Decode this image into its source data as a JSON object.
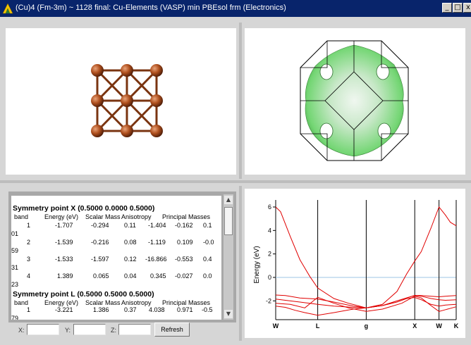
{
  "window": {
    "title": "(Cu)4  (Fm-3m) ~ 1128 final: Cu-Elements (VASP) min PBEsol frm (Electronics)",
    "buttons": {
      "minimize": "_",
      "maximize": "□",
      "close": "x"
    }
  },
  "symmetry_points": [
    {
      "title": "Symmetry point X (0.5000 0.0000 0.5000)",
      "rows": [
        {
          "band": "1",
          "energy": "-1.707",
          "scalar_mass": "-0.294",
          "anisotropy": "0.11",
          "pm1": "-1.404",
          "pm2": "-0.162",
          "pm3": "0.1",
          "spill": "01"
        },
        {
          "band": "2",
          "energy": "-1.539",
          "scalar_mass": "-0.216",
          "anisotropy": "0.08",
          "pm1": "-1.119",
          "pm2": "0.109",
          "pm3": "-0.0",
          "spill": "59"
        },
        {
          "band": "3",
          "energy": "-1.533",
          "scalar_mass": "-1.597",
          "anisotropy": "0.12",
          "pm1": "-16.866",
          "pm2": "-0.553",
          "pm3": "0.4",
          "spill": "31"
        },
        {
          "band": "4",
          "energy": "1.389",
          "scalar_mass": "0.065",
          "anisotropy": "0.04",
          "pm1": "0.345",
          "pm2": "-0.027",
          "pm3": "0.0",
          "spill": "23"
        }
      ]
    },
    {
      "title": "Symmetry point L (0.5000 0.5000 0.5000)",
      "rows": [
        {
          "band": "1",
          "energy": "-3.221",
          "scalar_mass": "1.386",
          "anisotropy": "0.37",
          "pm1": "4.038",
          "pm2": "0.971",
          "pm3": "-0.5",
          "spill": "79"
        }
      ]
    }
  ],
  "columns": {
    "band": "band",
    "energy": "Energy (eV)",
    "scalar_mass": "Scalar Mass",
    "anisotropy": "Anisotropy",
    "principal": "Principal Masses"
  },
  "controls": {
    "x_label": "X:",
    "x_value": "",
    "y_label": "Y:",
    "y_value": "",
    "z_label": "Z:",
    "z_value": "",
    "refresh_label": "Refresh"
  },
  "icons": {
    "app": "app-logo-icon",
    "scroll_up": "scroll-up-icon",
    "scroll_down": "scroll-down-icon"
  },
  "colors": {
    "title_bar": "#08246b",
    "copper_atom": "#b0501e",
    "fermi_surface": "#74d674",
    "band_line": "#e00000",
    "fermi_level_line": "#9ec6e6"
  },
  "chart_data": {
    "type": "line",
    "title": "",
    "ylabel": "Energy (eV)",
    "xlabel": "",
    "x_ticks": [
      "W",
      "L",
      "g",
      "X",
      "W",
      "K"
    ],
    "x_tick_positions": [
      0,
      0.866,
      1.866,
      2.866,
      3.366,
      3.72
    ],
    "ylim": [
      -3.6,
      6.6
    ],
    "y_ticks": [
      -2,
      0,
      2,
      4,
      6
    ],
    "fermi_level": 0,
    "grid": false,
    "series": [
      {
        "x": [
          0,
          0.2,
          0.4,
          0.6,
          0.866,
          1.2,
          1.6,
          1.866,
          2.2,
          2.5,
          2.7,
          2.866,
          3.0,
          3.2,
          3.366,
          3.5,
          3.72
        ],
        "y": [
          -2.45,
          -2.55,
          -2.8,
          -3.0,
          -3.22,
          -3.0,
          -2.7,
          -2.6,
          -2.4,
          -2.1,
          -1.8,
          -1.71,
          -1.9,
          -2.3,
          -2.45,
          -2.35,
          -2.3
        ]
      },
      {
        "x": [
          0,
          0.2,
          0.5,
          0.866,
          1.2,
          1.6,
          1.866,
          2.2,
          2.5,
          2.866,
          3.0,
          3.2,
          3.366,
          3.5,
          3.72
        ],
        "y": [
          -1.85,
          -1.95,
          -2.1,
          -2.3,
          -2.45,
          -2.55,
          -2.6,
          -2.4,
          -2.0,
          -1.54,
          -1.6,
          -1.8,
          -1.9,
          -1.95,
          -1.9
        ]
      },
      {
        "x": [
          0,
          0.2,
          0.5,
          0.866,
          1.2,
          1.6,
          1.866,
          2.2,
          2.5,
          2.866,
          3.0,
          3.2,
          3.366,
          3.5,
          3.72
        ],
        "y": [
          -1.5,
          -1.55,
          -1.75,
          -1.85,
          -2.1,
          -2.45,
          -2.6,
          -2.4,
          -2.0,
          -1.53,
          -1.55,
          -1.6,
          -1.65,
          -1.6,
          -1.55
        ]
      },
      {
        "x": [
          0,
          0.3,
          0.6,
          0.866,
          1.0,
          1.2,
          1.5,
          1.866,
          2.2,
          2.6,
          2.866,
          3.0,
          3.2,
          3.366,
          3.5,
          3.72
        ],
        "y": [
          -2.2,
          -2.3,
          -2.6,
          -1.7,
          -1.9,
          -2.2,
          -2.6,
          -2.9,
          -2.7,
          -2.2,
          -1.6,
          -1.75,
          -2.4,
          -2.9,
          -2.75,
          -2.5
        ]
      },
      {
        "x": [
          0,
          0.1,
          0.3,
          0.5,
          0.7,
          0.866,
          1.2,
          1.5,
          1.866,
          2.2,
          2.5,
          2.7,
          2.866,
          3.0,
          3.2,
          3.366,
          3.5,
          3.6,
          3.72
        ],
        "y": [
          6.0,
          5.6,
          3.5,
          1.5,
          0.1,
          -0.9,
          -1.8,
          -2.2,
          -2.6,
          -2.3,
          -1.2,
          0.3,
          1.39,
          2.2,
          4.2,
          6.0,
          5.3,
          4.7,
          4.4
        ]
      }
    ]
  }
}
